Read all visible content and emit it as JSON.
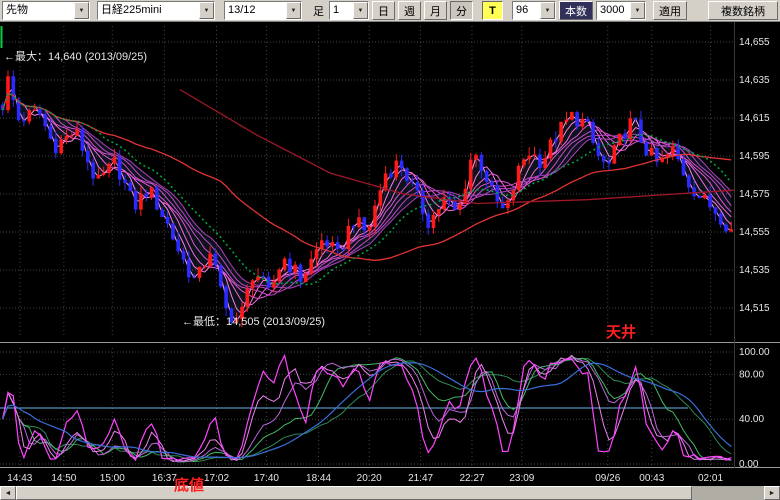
{
  "toolbar": {
    "market_value": "先物",
    "symbol_value": "日経225mini",
    "contract_value": "13/12",
    "bar_label": "足",
    "interval_value": "1",
    "period_buttons": [
      {
        "label": "日"
      },
      {
        "label": "週"
      },
      {
        "label": "月"
      },
      {
        "label": "分"
      }
    ],
    "tick_label": "T",
    "bars_value": "96",
    "count_label": "本数",
    "count_value": "3000",
    "apply_label": "適用",
    "multi_symbol_label": "複数銘柄"
  },
  "price_chart": {
    "max_annotation": "←最大：14,640 (2013/09/25)",
    "min_annotation": "←最低：14,505 (2013/09/25)",
    "ceiling_label": "天井",
    "bottom_label": "底値",
    "y_axis_labels": [
      "14,655",
      "14,635",
      "14,615",
      "14,595",
      "14,575",
      "14,555",
      "14,535",
      "14,515"
    ]
  },
  "indicator_panel": {
    "y_axis_labels": [
      {
        "label": "100.00",
        "value": 100
      },
      {
        "label": "80.00",
        "value": 80
      },
      {
        "label": "40.00",
        "value": 40
      },
      {
        "label": "0.00",
        "value": 0
      }
    ]
  },
  "time_axis": {
    "labels": [
      {
        "t": "14:43",
        "f": 0.027
      },
      {
        "t": "14:50",
        "f": 0.087
      },
      {
        "t": "15:00",
        "f": 0.153
      },
      {
        "t": "16:37",
        "f": 0.224
      },
      {
        "t": "17:02",
        "f": 0.295
      },
      {
        "t": "17:40",
        "f": 0.363
      },
      {
        "t": "18:44",
        "f": 0.434
      },
      {
        "t": "20:20",
        "f": 0.503
      },
      {
        "t": "21:47",
        "f": 0.573
      },
      {
        "t": "22:27",
        "f": 0.643
      },
      {
        "t": "23:09",
        "f": 0.711
      },
      {
        "t": "09/26",
        "f": 0.828
      },
      {
        "t": "00:43",
        "f": 0.888
      },
      {
        "t": "02:01",
        "f": 0.968
      }
    ]
  },
  "chart_data": {
    "type": "candlestick",
    "candle_count": 138,
    "y_axis": {
      "max": 14655,
      "min": 14515,
      "step": 20
    },
    "high": {
      "value": 14640,
      "date": "2013/09/25"
    },
    "low": {
      "value": 14505,
      "date": "2013/09/25"
    },
    "price_keyframes": [
      [
        0.0,
        14622
      ],
      [
        0.008,
        14636
      ],
      [
        0.02,
        14614
      ],
      [
        0.05,
        14618
      ],
      [
        0.07,
        14600
      ],
      [
        0.1,
        14608
      ],
      [
        0.13,
        14580
      ],
      [
        0.155,
        14592
      ],
      [
        0.18,
        14568
      ],
      [
        0.2,
        14578
      ],
      [
        0.225,
        14560
      ],
      [
        0.245,
        14542
      ],
      [
        0.265,
        14528
      ],
      [
        0.285,
        14546
      ],
      [
        0.305,
        14514
      ],
      [
        0.325,
        14508
      ],
      [
        0.345,
        14536
      ],
      [
        0.365,
        14522
      ],
      [
        0.385,
        14542
      ],
      [
        0.41,
        14530
      ],
      [
        0.44,
        14552
      ],
      [
        0.46,
        14542
      ],
      [
        0.48,
        14562
      ],
      [
        0.5,
        14554
      ],
      [
        0.525,
        14586
      ],
      [
        0.545,
        14592
      ],
      [
        0.565,
        14576
      ],
      [
        0.585,
        14560
      ],
      [
        0.605,
        14572
      ],
      [
        0.625,
        14564
      ],
      [
        0.645,
        14598
      ],
      [
        0.66,
        14588
      ],
      [
        0.675,
        14572
      ],
      [
        0.69,
        14564
      ],
      [
        0.705,
        14584
      ],
      [
        0.72,
        14598
      ],
      [
        0.74,
        14592
      ],
      [
        0.76,
        14606
      ],
      [
        0.78,
        14616
      ],
      [
        0.8,
        14612
      ],
      [
        0.815,
        14596
      ],
      [
        0.83,
        14588
      ],
      [
        0.85,
        14606
      ],
      [
        0.865,
        14614
      ],
      [
        0.88,
        14600
      ],
      [
        0.9,
        14590
      ],
      [
        0.92,
        14598
      ],
      [
        0.94,
        14582
      ],
      [
        0.96,
        14572
      ],
      [
        0.98,
        14566
      ],
      [
        1.0,
        14556
      ]
    ],
    "overlays": {
      "ma_ribbon_periods": [
        2,
        4,
        6,
        8,
        10,
        12,
        14
      ],
      "green_ma_period": 18,
      "red_ma_period": 42,
      "longterm_line": [
        [
          0.245,
          14630
        ],
        [
          0.35,
          14606
        ],
        [
          0.45,
          14586
        ],
        [
          0.55,
          14575
        ],
        [
          0.65,
          14570
        ],
        [
          0.8,
          14572
        ],
        [
          1.0,
          14577
        ]
      ]
    },
    "lower_indicator": {
      "type": "stochastic",
      "level_line": 50,
      "y_axis": [
        100,
        80,
        40,
        0
      ]
    }
  },
  "colors": {
    "chart_bg": "#000000",
    "grid": "#454545",
    "axis_text": "#e6e6e6",
    "up_candle": "#ff1a1a",
    "down_candle": "#2b2bff",
    "band_fill": "rgba(120,190,255,0.10)",
    "ribbon": [
      "#ff9bf0",
      "#ff7ce8",
      "#f564e0",
      "#e054d8",
      "#d04cd0",
      "#c046c8",
      "#ad40c0"
    ],
    "ma_green": "#00a344",
    "ma_red": "#e23333",
    "ma_longterm": "#a01828",
    "stoch_magenta": "#ff44ff",
    "stoch_pink": "#ee82ee",
    "stoch_violet": "#bb66dd",
    "stoch_green": "#44bb66",
    "stoch_green_dark": "#2e8b57",
    "stoch_blue": "#3a6fd8",
    "level_line": "#6ab6e8",
    "annotation_red": "#ff2020",
    "toolbar_bg": "#d4d0c8",
    "tick_button_bg": "#ffff55"
  }
}
